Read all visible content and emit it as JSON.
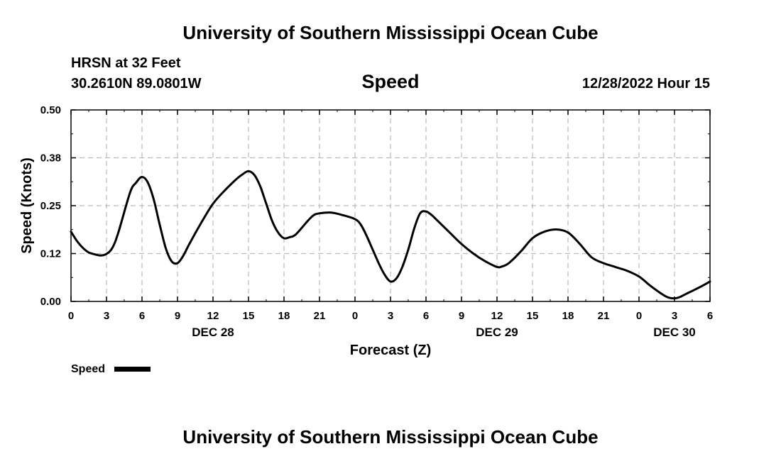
{
  "header": {
    "title": "University of Southern Mississippi Ocean Cube",
    "station": "HRSN at 32 Feet",
    "location": "30.2610N  89.0801W",
    "variable": "Speed",
    "valid_time": "12/28/2022 Hour 15"
  },
  "footer": {
    "title": "University of Southern Mississippi Ocean Cube"
  },
  "colors": {
    "line": "#000000",
    "grid": "#bbbbbb",
    "frame": "#000000"
  },
  "chart_data": {
    "type": "line",
    "title": "Speed",
    "xlabel": "Forecast (Z)",
    "ylabel": "Speed (Knots)",
    "xlim": [
      0,
      54
    ],
    "ylim": [
      0,
      0.5
    ],
    "grid": true,
    "x_ticks": [
      0,
      3,
      6,
      9,
      12,
      15,
      18,
      21,
      24,
      27,
      30,
      33,
      36,
      39,
      42,
      45,
      48,
      51,
      54
    ],
    "x_tick_labels": [
      "0",
      "3",
      "6",
      "9",
      "12",
      "15",
      "18",
      "21",
      "0",
      "3",
      "6",
      "9",
      "12",
      "15",
      "18",
      "21",
      "0",
      "3",
      "6"
    ],
    "y_ticks": [
      0,
      0.125,
      0.25,
      0.375,
      0.5
    ],
    "y_tick_labels": [
      "0.00",
      "0.12",
      "0.25",
      "0.38",
      "0.50"
    ],
    "date_labels": [
      {
        "x": 12,
        "label": "DEC 28"
      },
      {
        "x": 36,
        "label": "DEC 29"
      },
      {
        "x": 51,
        "label": "DEC 30"
      }
    ],
    "legend": {
      "label": "Speed",
      "placement": "bottom-left"
    },
    "series": [
      {
        "name": "Speed",
        "x": [
          0,
          0.5,
          1,
          1.5,
          2,
          2.5,
          3,
          3.5,
          4,
          5,
          5.5,
          6,
          6.5,
          7,
          7.5,
          8,
          8.5,
          9,
          9.5,
          10,
          11,
          12,
          13,
          14,
          14.5,
          15,
          15.5,
          16,
          16.5,
          17,
          17.5,
          18,
          18.5,
          19,
          20,
          20.5,
          21,
          22,
          23,
          24,
          24.5,
          25,
          25.5,
          26,
          26.5,
          27,
          27.5,
          28,
          28.5,
          29,
          29.5,
          30,
          30.5,
          31,
          32,
          33,
          34,
          35,
          36,
          36.5,
          37,
          38,
          39,
          40,
          41,
          42,
          43,
          44,
          45,
          46,
          47,
          48,
          49,
          50,
          50.5,
          51,
          51.5,
          52,
          53,
          54
        ],
        "values": [
          0.182,
          0.158,
          0.14,
          0.128,
          0.123,
          0.12,
          0.124,
          0.14,
          0.18,
          0.285,
          0.31,
          0.325,
          0.31,
          0.265,
          0.2,
          0.14,
          0.105,
          0.1,
          0.12,
          0.15,
          0.205,
          0.255,
          0.29,
          0.32,
          0.332,
          0.34,
          0.33,
          0.3,
          0.255,
          0.21,
          0.18,
          0.165,
          0.168,
          0.175,
          0.21,
          0.225,
          0.23,
          0.232,
          0.225,
          0.215,
          0.2,
          0.17,
          0.135,
          0.1,
          0.07,
          0.052,
          0.06,
          0.09,
          0.135,
          0.19,
          0.23,
          0.235,
          0.225,
          0.21,
          0.18,
          0.15,
          0.125,
          0.105,
          0.09,
          0.092,
          0.1,
          0.13,
          0.165,
          0.182,
          0.188,
          0.18,
          0.15,
          0.115,
          0.1,
          0.09,
          0.08,
          0.065,
          0.04,
          0.018,
          0.01,
          0.008,
          0.012,
          0.02,
          0.035,
          0.052
        ]
      }
    ]
  }
}
